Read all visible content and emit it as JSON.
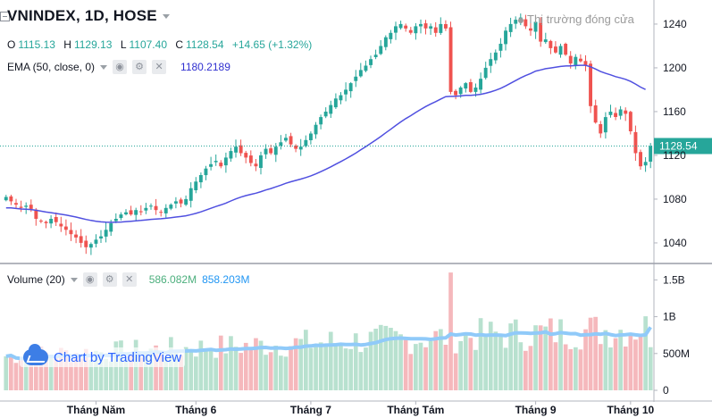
{
  "header": {
    "symbol": "VNINDEX, 1D, HOSE",
    "market_status": "Thị trường đóng cửa",
    "ohlc": {
      "o_label": "O",
      "o": "1115.13",
      "h_label": "H",
      "h": "1129.13",
      "l_label": "L",
      "l": "1107.40",
      "c_label": "C",
      "c": "1128.54",
      "change": "+14.65 (+1.32%)"
    }
  },
  "ema": {
    "label": "EMA (50, close, 0)",
    "value": "1180.2189"
  },
  "volume": {
    "label": "Volume (20)",
    "value": "586.082M",
    "ma_value": "858.203M"
  },
  "branding": {
    "text": "Chart by TradingView"
  },
  "colors": {
    "up": "#26a69a",
    "down": "#ef5350",
    "ema": "#5050e0",
    "vol_ma": "#90caf9",
    "vol_up": "#b8e1cf",
    "vol_down": "#f5b8bc"
  },
  "chart_data": [
    {
      "type": "candlestick",
      "title": "VNINDEX, 1D, HOSE",
      "y_ticks": [
        1040,
        1080,
        1120,
        1160,
        1200,
        1240
      ],
      "ylim": [
        1022,
        1262
      ],
      "last_price": 1128.54,
      "last_price_label": "1128.54",
      "x_ticks": [
        {
          "label": "Tháng Năm",
          "index": 18
        },
        {
          "label": "Tháng 6",
          "index": 38
        },
        {
          "label": "Tháng 7",
          "index": 61
        },
        {
          "label": "Tháng Tám",
          "index": 82
        },
        {
          "label": "Tháng 9",
          "index": 106
        },
        {
          "label": "Tháng 10",
          "index": 125
        }
      ],
      "close_series": [
        1082,
        1078,
        1075,
        1072,
        1074,
        1071,
        1062,
        1060,
        1058,
        1062,
        1059,
        1055,
        1052,
        1048,
        1045,
        1040,
        1036,
        1039,
        1043,
        1046,
        1052,
        1058,
        1062,
        1066,
        1068,
        1066,
        1070,
        1068,
        1072,
        1074,
        1070,
        1068,
        1072,
        1075,
        1078,
        1076,
        1080,
        1090,
        1096,
        1102,
        1108,
        1112,
        1115,
        1110,
        1118,
        1124,
        1128,
        1122,
        1118,
        1113,
        1110,
        1120,
        1126,
        1122,
        1128,
        1132,
        1136,
        1130,
        1126,
        1128,
        1134,
        1140,
        1148,
        1155,
        1160,
        1166,
        1172,
        1175,
        1180,
        1186,
        1192,
        1198,
        1202,
        1208,
        1212,
        1220,
        1228,
        1232,
        1238,
        1240,
        1236,
        1232,
        1238,
        1240,
        1236,
        1238,
        1232,
        1240,
        1236,
        1178,
        1175,
        1182,
        1186,
        1178,
        1182,
        1190,
        1200,
        1208,
        1214,
        1222,
        1234,
        1240,
        1244,
        1246,
        1238,
        1234,
        1242,
        1224,
        1226,
        1218,
        1214,
        1220,
        1212,
        1204,
        1210,
        1206,
        1202,
        1165,
        1150,
        1140,
        1155,
        1160,
        1155,
        1162,
        1158,
        1142,
        1122,
        1110,
        1114,
        1128.54
      ],
      "ema_series": [
        1072,
        1072,
        1071.5,
        1071,
        1070.8,
        1070.5,
        1069.8,
        1069,
        1068.2,
        1067.6,
        1066.9,
        1066.2,
        1065.4,
        1064.5,
        1063.6,
        1062.5,
        1061.4,
        1060.5,
        1059.8,
        1059.2,
        1058.9,
        1058.8,
        1058.9,
        1059.1,
        1059.5,
        1059.8,
        1060.2,
        1060.5,
        1061,
        1061.5,
        1061.8,
        1062.1,
        1062.5,
        1063,
        1063.6,
        1064.1,
        1064.8,
        1065.8,
        1067,
        1068.4,
        1070,
        1071.6,
        1073.3,
        1074.7,
        1076.4,
        1078.3,
        1080.2,
        1081.8,
        1083.2,
        1084.4,
        1085.4,
        1086.8,
        1088.4,
        1089.7,
        1091.2,
        1092.8,
        1094.5,
        1095.9,
        1097.1,
        1098.3,
        1099.7,
        1101.3,
        1103.1,
        1105.1,
        1107.2,
        1109.5,
        1112,
        1114.3,
        1116.8,
        1119.4,
        1122.1,
        1125,
        1127.9,
        1131,
        1134,
        1137.2,
        1140.6,
        1143.9,
        1147.3,
        1150.6,
        1153.6,
        1156.3,
        1159.2,
        1162,
        1164.6,
        1167,
        1169.1,
        1171.5,
        1173.7,
        1173.9,
        1174,
        1174.3,
        1174.8,
        1174.9,
        1175.2,
        1175.8,
        1176.8,
        1178,
        1179.5,
        1181.3,
        1183.5,
        1185.9,
        1188.4,
        1190.8,
        1192.9,
        1194.8,
        1197,
        1198.1,
        1199.2,
        1199.9,
        1200.5,
        1201.3,
        1201.7,
        1201.8,
        1202.1,
        1202.3,
        1202.3,
        1200.9,
        1198.9,
        1196.6,
        1195,
        1193.6,
        1192,
        1190.8,
        1189.5,
        1187.6,
        1185.2,
        1182.4,
        1180.2
      ]
    },
    {
      "type": "bar",
      "title": "Volume (20)",
      "y_ticks": [
        0,
        500000000,
        1000000000,
        1500000000
      ],
      "y_tick_labels": [
        "0",
        "500M",
        "1B",
        "1.5B"
      ],
      "ylim": [
        0,
        1650000000
      ],
      "ma_period": 20,
      "last_volume": 586082000,
      "last_ma": 858203000
    }
  ]
}
